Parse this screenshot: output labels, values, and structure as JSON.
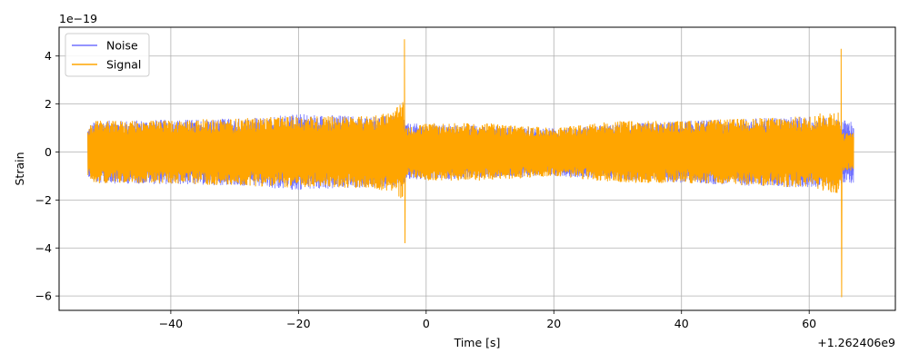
{
  "chart_data": {
    "type": "line",
    "title": "",
    "xlabel": "Time [s]",
    "ylabel": "Strain",
    "x_offset_label": "+1.262406e9",
    "y_scale_label": "1e−19",
    "xlim": [
      -57.5,
      73.5
    ],
    "ylim": [
      -6.6,
      5.2
    ],
    "x_ticks": [
      -40,
      -20,
      0,
      20,
      40,
      60
    ],
    "x_tick_labels": [
      "−40",
      "−20",
      "0",
      "20",
      "40",
      "60"
    ],
    "y_ticks": [
      4,
      2,
      0,
      -2,
      -4,
      -6
    ],
    "y_tick_labels": [
      "4",
      "2",
      "0",
      "−2",
      "−4",
      "−6"
    ],
    "grid": true,
    "legend_position": "top-left",
    "series": [
      {
        "name": "Noise",
        "color": "#7070ff",
        "envelope": [
          [
            -53,
            1.0
          ],
          [
            -52,
            1.3
          ],
          [
            -30,
            1.4
          ],
          [
            -20,
            1.6
          ],
          [
            -10,
            1.5
          ],
          [
            -3.4,
            1.5
          ],
          [
            -3.2,
            1.2
          ],
          [
            20,
            1.0
          ],
          [
            40,
            1.3
          ],
          [
            60,
            1.5
          ],
          [
            67,
            1.3
          ]
        ]
      },
      {
        "name": "Signal",
        "color": "#ffa500",
        "envelope": [
          [
            -53,
            1.0
          ],
          [
            -52,
            1.3
          ],
          [
            -45,
            1.3
          ],
          [
            -30,
            1.4
          ],
          [
            -20,
            1.5
          ],
          [
            -10,
            1.5
          ],
          [
            -5,
            1.7
          ],
          [
            -3.6,
            2.2
          ],
          [
            -3.4,
            1.0
          ],
          [
            -3.2,
            1.0
          ],
          [
            0,
            1.2
          ],
          [
            10,
            1.2
          ],
          [
            20,
            1.0
          ],
          [
            30,
            1.3
          ],
          [
            40,
            1.3
          ],
          [
            50,
            1.4
          ],
          [
            60,
            1.5
          ],
          [
            64.5,
            1.8
          ],
          [
            65,
            1.0
          ],
          [
            65.3,
            0.8
          ],
          [
            67,
            0.8
          ]
        ],
        "bursts": [
          {
            "t": -3.4,
            "max": 4.7,
            "min": -3.8
          },
          {
            "t": 65.0,
            "max": 4.3,
            "min": -6.05
          }
        ]
      }
    ]
  }
}
